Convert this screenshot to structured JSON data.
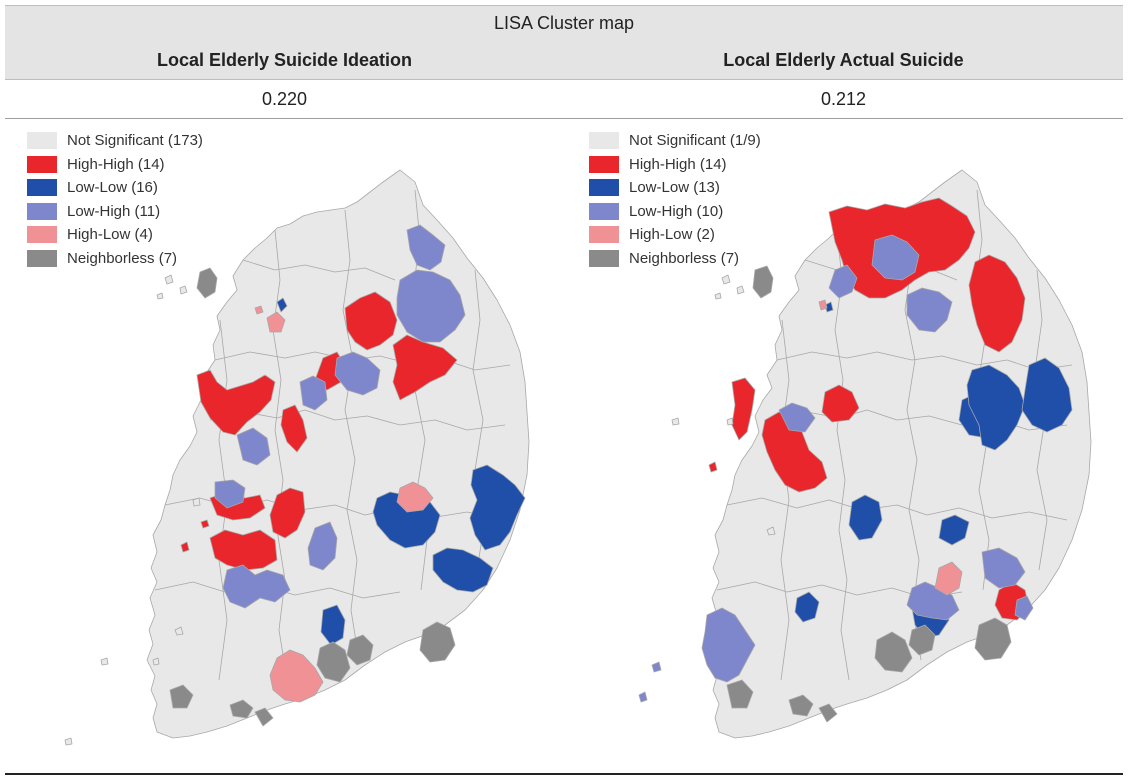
{
  "title": "LISA Cluster map",
  "columns": [
    {
      "header": "Local Elderly Suicide Ideation",
      "value": "0.220",
      "legend": [
        {
          "label": "Not Significant (173)",
          "color": "#e8e8e8",
          "icon": "not-significant-swatch"
        },
        {
          "label": "High-High (14)",
          "color": "#e8262b",
          "icon": "high-high-swatch"
        },
        {
          "label": "Low-Low (16)",
          "color": "#1f4fa8",
          "icon": "low-low-swatch"
        },
        {
          "label": "Low-High (11)",
          "color": "#7e86cc",
          "icon": "low-high-swatch"
        },
        {
          "label": "High-Low (4)",
          "color": "#f09196",
          "icon": "high-low-swatch"
        },
        {
          "label": "Neighborless (7)",
          "color": "#8a8a8a",
          "icon": "neighborless-swatch"
        }
      ]
    },
    {
      "header": "Local Elderly Actual Suicide",
      "value": "0.212",
      "legend": [
        {
          "label": "Not Significant (1/9)",
          "color": "#e8e8e8",
          "icon": "not-significant-swatch"
        },
        {
          "label": "High-High (14)",
          "color": "#e8262b",
          "icon": "high-high-swatch"
        },
        {
          "label": "Low-Low (13)",
          "color": "#1f4fa8",
          "icon": "low-low-swatch"
        },
        {
          "label": "Low-High (10)",
          "color": "#7e86cc",
          "icon": "low-high-swatch"
        },
        {
          "label": "High-Low (2)",
          "color": "#f09196",
          "icon": "high-low-swatch"
        },
        {
          "label": "Neighborless (7)",
          "color": "#8a8a8a",
          "icon": "neighborless-swatch"
        }
      ]
    }
  ],
  "colors": {
    "not_significant": "#e8e8e8",
    "high_high": "#e8262b",
    "low_low": "#1f4fa8",
    "low_high": "#7e86cc",
    "high_low": "#f09196",
    "neighborless": "#8a8a8a",
    "border": "#a8a8a8"
  }
}
